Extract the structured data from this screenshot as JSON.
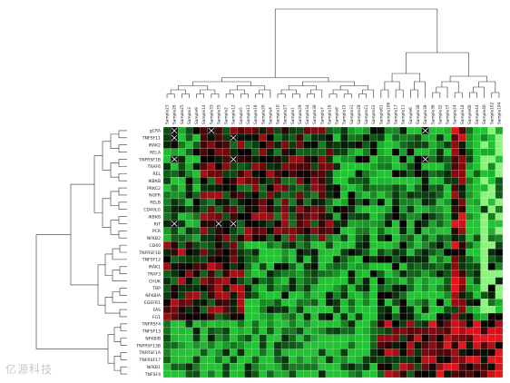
{
  "chart_data": {
    "type": "heatmap",
    "title": "",
    "columns": [
      "Sample23",
      "Sample26",
      "Sample25",
      "Sample3",
      "Sample9",
      "Sample14",
      "Sample33",
      "Sample35",
      "Sample2",
      "Sample12",
      "Sample5",
      "Sample13",
      "Sample19",
      "Sample20",
      "Sample4",
      "Sample10",
      "Sample27",
      "Sample1",
      "Sample29",
      "Sample34",
      "Sample30",
      "Sample7",
      "Sample16",
      "Sample8",
      "Sample15",
      "Sample31",
      "Sample28",
      "Sample21",
      "Sample22",
      "Sample61",
      "Sample100",
      "Sample17",
      "Sample11",
      "Sample6",
      "Sample38",
      "Sample39",
      "Sample36",
      "Sample32",
      "Sample37",
      "Sample24",
      "Sample18",
      "Sample60",
      "Sample44",
      "Sample40",
      "Sample102",
      "Sample104"
    ],
    "rows": [
      "gCRA",
      "TNFSF11",
      "IRAK2",
      "RELA",
      "TNFRSF1B",
      "TRAF6",
      "REL",
      "IKBKB",
      "PRKC2",
      "NGFR",
      "RELB",
      "CD40LG",
      "IKBKB",
      "RIT",
      "PCR",
      "NFKB2",
      "CD40",
      "TNFRSF1B",
      "TNFSF12",
      "IRAK1",
      "TRAF3",
      "CHUK",
      "TBP",
      "NFKBIA",
      "EGEFR1",
      "FAS",
      "FG1",
      "TNFRSF4",
      "TNFSF13",
      "NFKBIB",
      "TNFRSF13B",
      "TNFRSF1A",
      "TNFRSF17",
      "NFKB1",
      "TNFSF4"
    ],
    "missing_cells": [
      [
        0,
        1
      ],
      [
        1,
        1
      ],
      [
        0,
        6
      ],
      [
        1,
        9
      ],
      [
        4,
        1
      ],
      [
        4,
        9
      ],
      [
        13,
        1
      ],
      [
        13,
        7
      ],
      [
        13,
        9
      ],
      [
        0,
        35
      ],
      [
        4,
        35
      ]
    ],
    "color_scale": {
      "low": "#22c433",
      "mid": "#000000",
      "high": "#e8141c",
      "light": "#8ef27f"
    },
    "watermark": "亿源科技"
  }
}
